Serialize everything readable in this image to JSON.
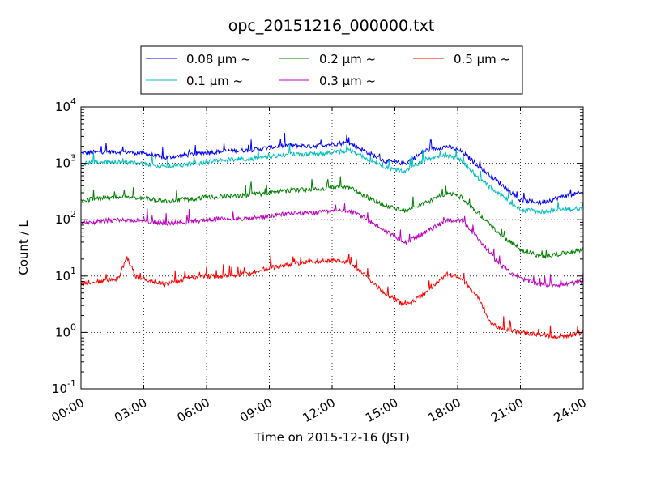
{
  "chart_data": {
    "type": "line",
    "title": "opc_20151216_000000.txt",
    "xlabel": "Time on 2015-12-16 (JST)",
    "ylabel": "Count / L",
    "y_scale": "log",
    "ylim": [
      0.1,
      10000
    ],
    "xlim_hours": [
      0,
      24
    ],
    "grid": true,
    "legend_position": "top-center-outside",
    "x_tick_labels": [
      "00:00",
      "03:00",
      "06:00",
      "09:00",
      "12:00",
      "15:00",
      "18:00",
      "21:00",
      "24:00"
    ],
    "y_tick_labels": [
      {
        "base": "10",
        "exp": "-1",
        "value": 0.1
      },
      {
        "base": "10",
        "exp": "0",
        "value": 1
      },
      {
        "base": "10",
        "exp": "1",
        "value": 10
      },
      {
        "base": "10",
        "exp": "2",
        "value": 100
      },
      {
        "base": "10",
        "exp": "3",
        "value": 1000
      },
      {
        "base": "10",
        "exp": "4",
        "value": 10000
      }
    ],
    "series": [
      {
        "name": "0.08 μm ~",
        "color": "#0000ff",
        "hours": [
          0,
          1,
          2,
          3,
          4,
          5,
          6,
          7,
          8,
          9,
          10,
          11,
          12,
          12.8,
          13.5,
          14.5,
          15.5,
          16.5,
          17.5,
          18.2,
          19,
          20,
          21,
          22,
          23,
          24
        ],
        "values": [
          1500,
          1600,
          1600,
          1500,
          1250,
          1400,
          1550,
          1650,
          1700,
          1900,
          2100,
          2000,
          2200,
          2300,
          1700,
          1100,
          1000,
          1700,
          2000,
          1600,
          900,
          450,
          220,
          200,
          260,
          300
        ]
      },
      {
        "name": "0.1 μm ~",
        "color": "#00bfbf",
        "hours": [
          0,
          1,
          2,
          3,
          4,
          5,
          6,
          7,
          8,
          9,
          10,
          11,
          12,
          12.8,
          13.5,
          14.5,
          15.5,
          16.5,
          17.5,
          18.2,
          19,
          20,
          21,
          22,
          23,
          24
        ],
        "values": [
          1000,
          1050,
          1050,
          1000,
          850,
          950,
          1050,
          1150,
          1200,
          1300,
          1450,
          1450,
          1550,
          1700,
          1300,
          850,
          700,
          1200,
          1400,
          1100,
          550,
          280,
          150,
          140,
          150,
          160
        ]
      },
      {
        "name": "0.2 μm ~",
        "color": "#008000",
        "hours": [
          0,
          1,
          2,
          3,
          4,
          5,
          6,
          7,
          8,
          9,
          10,
          11,
          12,
          12.8,
          13.5,
          14.5,
          15.5,
          16.5,
          17.5,
          18.2,
          19,
          20,
          21,
          22,
          23,
          24
        ],
        "values": [
          220,
          240,
          250,
          240,
          210,
          230,
          250,
          260,
          270,
          300,
          330,
          340,
          370,
          380,
          270,
          180,
          140,
          200,
          300,
          250,
          130,
          55,
          30,
          22,
          25,
          30
        ]
      },
      {
        "name": "0.3 μm ~",
        "color": "#bf00bf",
        "hours": [
          0,
          1,
          2,
          3,
          4,
          5,
          6,
          7,
          8,
          9,
          10,
          11,
          12,
          12.8,
          13.5,
          14.5,
          15.5,
          16.5,
          17.5,
          18.2,
          19,
          20,
          21,
          22,
          23,
          24
        ],
        "values": [
          85,
          95,
          100,
          95,
          85,
          90,
          100,
          105,
          105,
          115,
          130,
          130,
          140,
          145,
          110,
          65,
          40,
          60,
          100,
          95,
          45,
          16,
          9,
          7,
          7,
          8
        ]
      },
      {
        "name": "0.5 μm ~",
        "color": "#ff0000",
        "hours": [
          0,
          1,
          1.8,
          2.2,
          2.6,
          3,
          4,
          5,
          6,
          7,
          8,
          9,
          10,
          11,
          12,
          12.8,
          13.5,
          14.5,
          15.5,
          16.5,
          17.5,
          18.2,
          19,
          19.5,
          20,
          21,
          22,
          23,
          24
        ],
        "values": [
          7.5,
          8,
          9,
          22,
          10,
          9,
          7,
          9,
          10,
          10,
          11,
          14,
          16,
          18,
          19,
          18,
          11,
          5,
          3,
          5,
          11,
          9,
          4,
          1.6,
          1.2,
          1,
          0.9,
          0.85,
          1
        ]
      }
    ]
  }
}
